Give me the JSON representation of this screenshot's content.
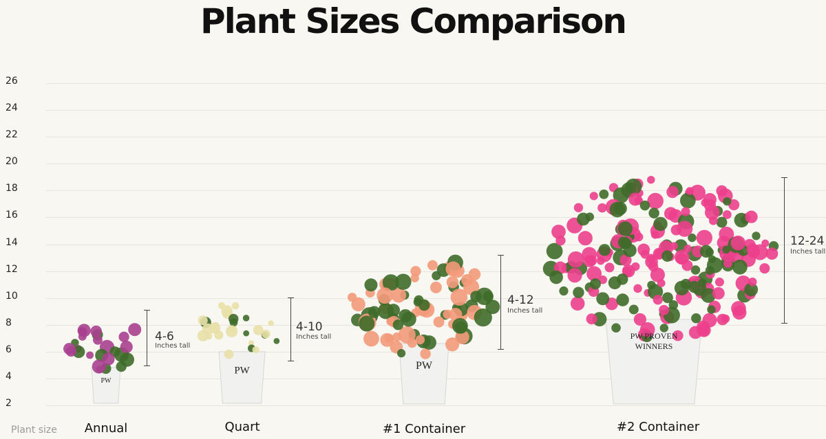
{
  "chart_data": {
    "type": "bar",
    "title": "Plant Sizes Comparison",
    "xlabel": "Plant size",
    "ylabel": "",
    "ylim": [
      2,
      26
    ],
    "yticks": [
      26,
      24,
      22,
      20,
      18,
      16,
      14,
      12,
      10,
      8,
      6,
      4,
      2
    ],
    "grid": true,
    "categories": [
      "Annual",
      "Quart",
      "#1 Container",
      "#2 Container"
    ],
    "ranges": [
      {
        "label": "4-6",
        "unit": "Inches tall",
        "min": 4,
        "max": 6
      },
      {
        "label": "4-10",
        "unit": "Inches tall",
        "min": 4,
        "max": 10
      },
      {
        "label": "4-12",
        "unit": "Inches tall",
        "min": 4,
        "max": 12
      },
      {
        "label": "12-24",
        "unit": "Inches tall",
        "min": 12,
        "max": 24
      }
    ],
    "flower_colors": [
      "#a8408f",
      "#e8e0a8",
      "#f39a7a",
      "#ec3f8c"
    ],
    "pot_brand": "PW PROVEN WINNERS"
  }
}
